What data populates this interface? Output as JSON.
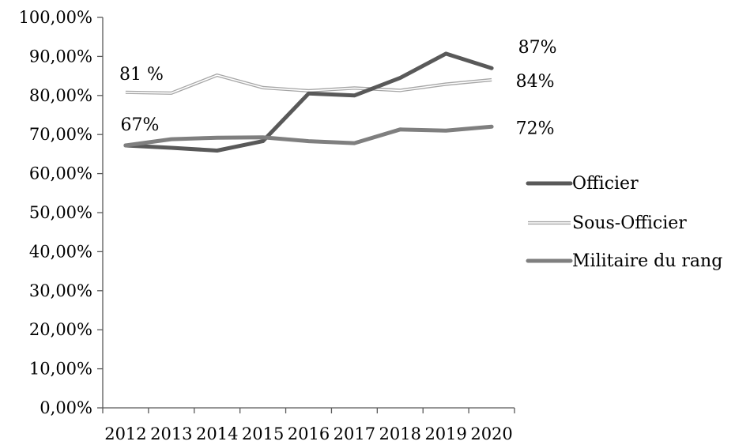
{
  "chart_data": {
    "type": "line",
    "x": [
      "2012",
      "2013",
      "2014",
      "2015",
      "2016",
      "2017",
      "2018",
      "2019",
      "2020"
    ],
    "ylim": [
      0,
      100
    ],
    "y_ticks": [
      "0,00%",
      "10,00%",
      "20,00%",
      "30,00%",
      "40,00%",
      "50,00%",
      "60,00%",
      "70,00%",
      "80,00%",
      "90,00%",
      "100,00%"
    ],
    "grid": false,
    "legend_position": "right",
    "series": [
      {
        "name": "Officier",
        "color": "#595959",
        "style": "solid-thick",
        "values": [
          67.2,
          66.6,
          65.9,
          68.3,
          80.5,
          80.0,
          84.5,
          90.7,
          87.0
        ]
      },
      {
        "name": "Sous-Officier",
        "color": "#a6a6a6",
        "style": "double-thin",
        "values": [
          80.8,
          80.6,
          85.2,
          82.0,
          81.2,
          81.9,
          81.3,
          82.9,
          84.0
        ]
      },
      {
        "name": "Militaire du rang",
        "color": "#7f7f7f",
        "style": "solid-medium",
        "values": [
          67.2,
          68.8,
          69.2,
          69.3,
          68.3,
          67.8,
          71.3,
          71.0,
          72.0
        ]
      }
    ],
    "annotations": [
      {
        "text": "81 %",
        "x": "2012",
        "y": 80.8
      },
      {
        "text": "67%",
        "x": "2012",
        "y": 67.2
      },
      {
        "text": "87%",
        "x": "2020",
        "y": 87.0
      },
      {
        "text": "84%",
        "x": "2020",
        "y": 84.0
      },
      {
        "text": "72%",
        "x": "2020",
        "y": 72.0
      }
    ]
  }
}
